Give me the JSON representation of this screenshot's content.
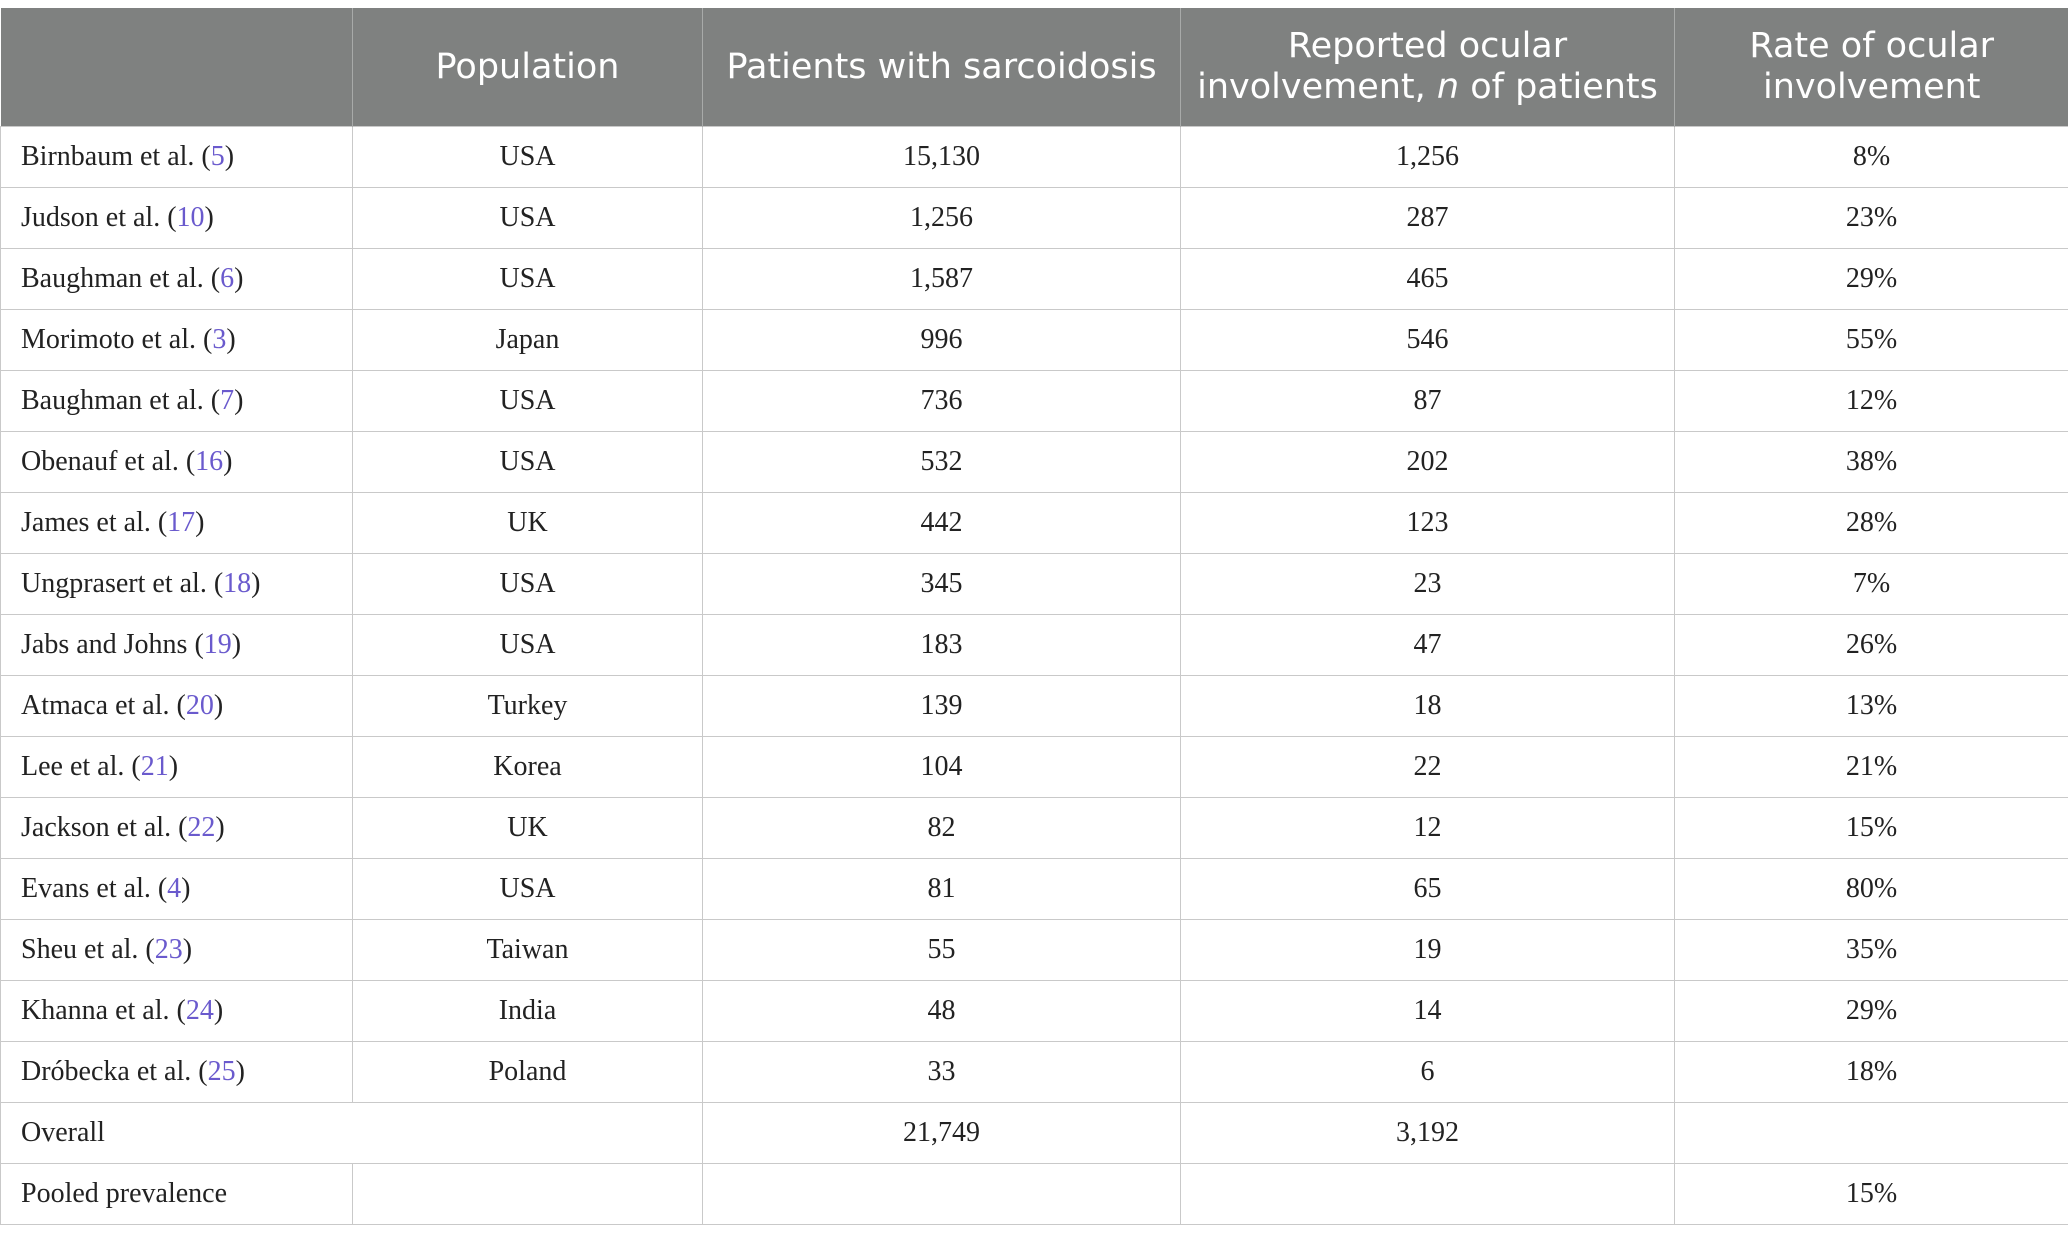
{
  "table": {
    "header": [
      "Population",
      "Patients with sarcoidosis",
      {
        "before": "Reported ocular involvement, ",
        "italic": "n",
        "after": " of patients"
      },
      "Rate of ocular involvement"
    ],
    "rows": [
      {
        "study": "Birnbaum et al.",
        "ref": "5",
        "population": "USA",
        "patients": "15,130",
        "ocular": "1,256",
        "rate": "8%"
      },
      {
        "study": "Judson et al.",
        "ref": "10",
        "population": "USA",
        "patients": "1,256",
        "ocular": "287",
        "rate": "23%"
      },
      {
        "study": "Baughman et al.",
        "ref": "6",
        "population": "USA",
        "patients": "1,587",
        "ocular": "465",
        "rate": "29%"
      },
      {
        "study": "Morimoto et al.",
        "ref": "3",
        "population": "Japan",
        "patients": "996",
        "ocular": "546",
        "rate": "55%"
      },
      {
        "study": "Baughman et al.",
        "ref": "7",
        "population": "USA",
        "patients": "736",
        "ocular": "87",
        "rate": "12%"
      },
      {
        "study": "Obenauf et al.",
        "ref": "16",
        "population": "USA",
        "patients": "532",
        "ocular": "202",
        "rate": "38%"
      },
      {
        "study": "James et al.",
        "ref": "17",
        "population": "UK",
        "patients": "442",
        "ocular": "123",
        "rate": "28%"
      },
      {
        "study": "Ungprasert et al.",
        "ref": "18",
        "population": "USA",
        "patients": "345",
        "ocular": "23",
        "rate": "7%"
      },
      {
        "study": "Jabs and Johns",
        "ref": "19",
        "population": "USA",
        "patients": "183",
        "ocular": "47",
        "rate": "26%"
      },
      {
        "study": "Atmaca et al.",
        "ref": "20",
        "population": "Turkey",
        "patients": "139",
        "ocular": "18",
        "rate": "13%"
      },
      {
        "study": "Lee et al.",
        "ref": "21",
        "population": "Korea",
        "patients": "104",
        "ocular": "22",
        "rate": "21%"
      },
      {
        "study": "Jackson et al.",
        "ref": "22",
        "population": "UK",
        "patients": "82",
        "ocular": "12",
        "rate": "15%"
      },
      {
        "study": "Evans et al.",
        "ref": "4",
        "population": "USA",
        "patients": "81",
        "ocular": "65",
        "rate": "80%"
      },
      {
        "study": "Sheu et al.",
        "ref": "23",
        "population": "Taiwan",
        "patients": "55",
        "ocular": "19",
        "rate": "35%"
      },
      {
        "study": "Khanna et al.",
        "ref": "24",
        "population": "India",
        "patients": "48",
        "ocular": "14",
        "rate": "29%"
      },
      {
        "study": "Dróbecka et al.",
        "ref": "25",
        "population": "Poland",
        "patients": "33",
        "ocular": "6",
        "rate": "18%"
      }
    ],
    "overall": {
      "label": "Overall",
      "patients": "21,749",
      "ocular": "3,192"
    },
    "pooled": {
      "label": "Pooled prevalence",
      "rate": "15%"
    }
  }
}
